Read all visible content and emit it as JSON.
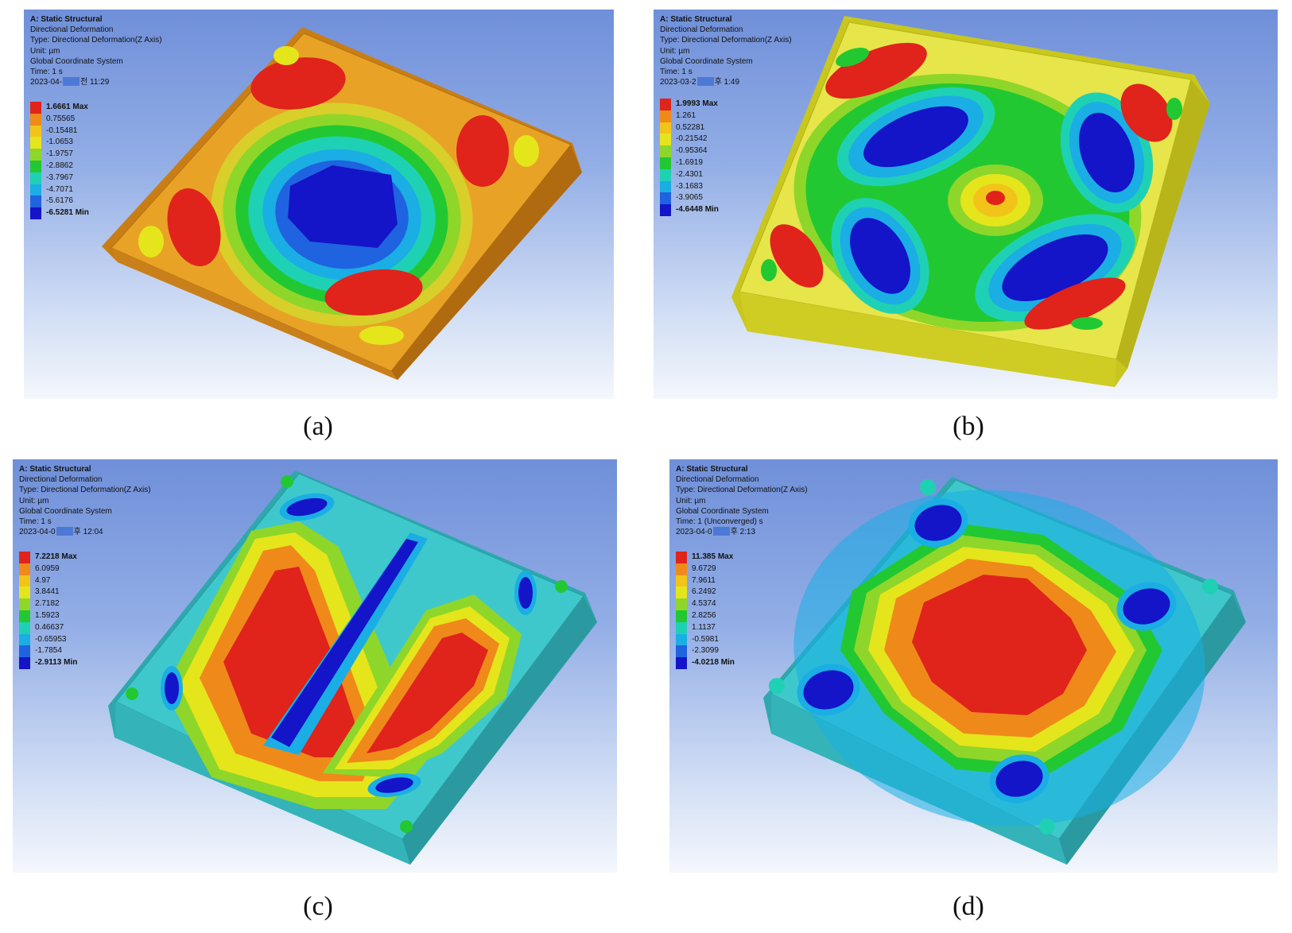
{
  "panels": [
    {
      "id": "a",
      "caption": "(a)",
      "caption_letter": "a",
      "info": {
        "title": "A: Static Structural",
        "line1": "Directional Deformation",
        "line2": "Type: Directional Deformation(Z Axis)",
        "line3": "Unit: µm",
        "line4": "Global Coordinate System",
        "line5": "Time: 1 s",
        "stamp_prefix": "2023-04-",
        "stamp_suffix": "전 11:29"
      },
      "legend": [
        "1.6661 Max",
        "0.75565",
        "-0.15481",
        "-1.0653",
        "-1.9757",
        "-2.8862",
        "-3.7967",
        "-4.7071",
        "-5.6176",
        "-6.5281 Min"
      ]
    },
    {
      "id": "b",
      "caption": "(b)",
      "caption_letter": "b",
      "info": {
        "title": "A: Static Structural",
        "line1": "Directional Deformation",
        "line2": "Type: Directional Deformation(Z Axis)",
        "line3": "Unit: µm",
        "line4": "Global Coordinate System",
        "line5": "Time: 1 s",
        "stamp_prefix": "2023-03-2",
        "stamp_suffix": "후 1:49"
      },
      "legend": [
        "1.9993 Max",
        "1.261",
        "0.52281",
        "-0.21542",
        "-0.95364",
        "-1.6919",
        "-2.4301",
        "-3.1683",
        "-3.9065",
        "-4.6448 Min"
      ]
    },
    {
      "id": "c",
      "caption": "(c)",
      "caption_letter": "c",
      "info": {
        "title": "A: Static Structural",
        "line1": "Directional Deformation",
        "line2": "Type: Directional Deformation(Z Axis)",
        "line3": "Unit: µm",
        "line4": "Global Coordinate System",
        "line5": "Time: 1 s",
        "stamp_prefix": "2023-04-0",
        "stamp_suffix": "후 12:04"
      },
      "legend": [
        "7.2218 Max",
        "6.0959",
        "4.97",
        "3.8441",
        "2.7182",
        "1.5923",
        "0.46637",
        "-0.65953",
        "-1.7854",
        "-2.9113 Min"
      ]
    },
    {
      "id": "d",
      "caption": "(d)",
      "caption_letter": "d",
      "info": {
        "title": "A: Static Structural",
        "line1": "Directional Deformation",
        "line2": "Type: Directional Deformation(Z Axis)",
        "line3": "Unit: µm",
        "line4": "Global Coordinate System",
        "line5": "Time: 1 (Unconverged) s",
        "stamp_prefix": "2023-04-0",
        "stamp_suffix": "후 2:13"
      },
      "legend": [
        "11.385 Max",
        "9.6729",
        "7.9611",
        "6.2492",
        "4.5374",
        "2.8256",
        "1.1137",
        "-0.5981",
        "-2.3099",
        "-4.0218 Min"
      ]
    }
  ],
  "legend_colors": [
    "#e0231b",
    "#ef8a1a",
    "#f2c41a",
    "#e5e51c",
    "#8fd62a",
    "#22c832",
    "#1fd1b4",
    "#1aaee4",
    "#1f63e0",
    "#1414c8"
  ],
  "plate_colors": {
    "a": "#e8a326",
    "b": "#e6e54a",
    "c": "#3fc8cc",
    "d": "#3fc8cc"
  }
}
